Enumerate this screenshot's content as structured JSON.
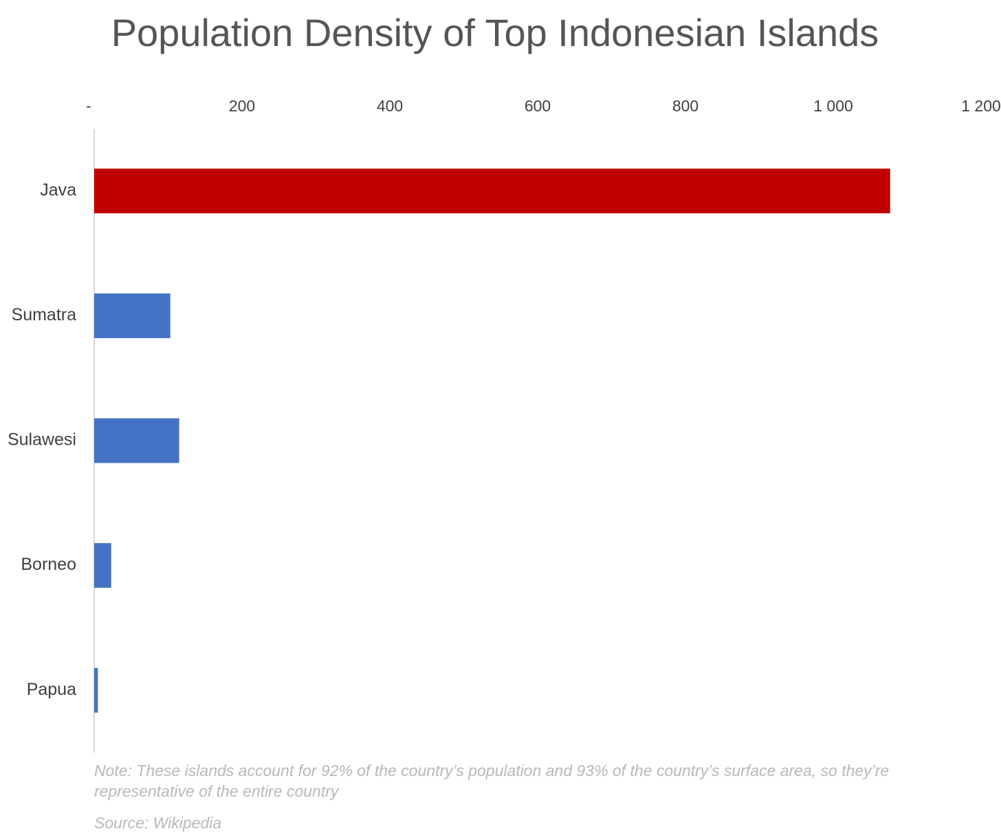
{
  "chart_data": {
    "type": "bar",
    "orientation": "horizontal",
    "title": "Population Density of Top Indonesian Islands",
    "categories": [
      "Java",
      "Sumatra",
      "Sulawesi",
      "Borneo",
      "Papua"
    ],
    "values": [
      1077,
      103,
      115,
      23,
      5
    ],
    "colors": [
      "#c00000",
      "#4472c4",
      "#4472c4",
      "#4472c4",
      "#4472c4"
    ],
    "xlim": [
      0,
      1200
    ],
    "xticks": [
      {
        "value": 0,
        "label": "-"
      },
      200,
      400,
      600,
      800,
      {
        "value": 1000,
        "label": "1 000"
      },
      {
        "value": 1200,
        "label": "1 200"
      }
    ],
    "grid": false,
    "note": "Note: These islands account for 92% of the country’s population and 93% of the country’s surface area, so they’re representative of the entire country",
    "source": "Source: Wikipedia"
  }
}
